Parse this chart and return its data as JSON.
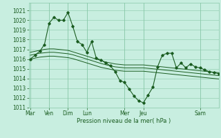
{
  "title": "Pression niveau de la mer( hPa )",
  "day_tick_labels": [
    "Mar",
    "Ven",
    "Dim",
    "Lun",
    "Mer",
    "Jeu",
    "Sam"
  ],
  "day_tick_positions": [
    0,
    24,
    48,
    72,
    120,
    144,
    216
  ],
  "xlim": [
    -2,
    240
  ],
  "ylim": [
    1011.0,
    1021.8
  ],
  "yticks": [
    1011,
    1012,
    1013,
    1014,
    1015,
    1016,
    1017,
    1018,
    1019,
    1020,
    1021
  ],
  "bg_color": "#c8eee0",
  "grid_color": "#88c8a8",
  "line_color": "#1a5c20",
  "jagged_x": [
    0,
    6,
    12,
    18,
    24,
    30,
    36,
    42,
    48,
    54,
    60,
    66,
    72,
    78,
    84,
    90,
    96,
    102,
    108,
    114,
    120,
    126,
    132,
    138,
    144,
    150,
    156,
    162,
    168,
    174,
    180,
    186,
    192,
    198,
    204,
    210,
    216,
    222,
    228,
    234,
    240
  ],
  "jagged_y": [
    1016.0,
    1016.4,
    1016.8,
    1017.5,
    1019.7,
    1020.3,
    1020.0,
    1020.0,
    1020.8,
    1019.4,
    1017.8,
    1017.5,
    1016.7,
    1017.8,
    1016.1,
    1015.9,
    1015.6,
    1015.3,
    1014.7,
    1013.8,
    1013.6,
    1012.9,
    1012.2,
    1011.7,
    1011.5,
    1012.3,
    1013.1,
    1015.2,
    1016.4,
    1016.6,
    1016.6,
    1015.1,
    1015.6,
    1015.1,
    1015.5,
    1015.2,
    1015.1,
    1014.9,
    1014.7,
    1014.6,
    1014.5
  ],
  "smooth1_y": [
    1016.7,
    1016.8,
    1016.9,
    1017.0,
    1017.05,
    1017.05,
    1017.0,
    1016.95,
    1016.9,
    1016.75,
    1016.6,
    1016.45,
    1016.3,
    1016.15,
    1016.0,
    1015.85,
    1015.7,
    1015.6,
    1015.5,
    1015.45,
    1015.4,
    1015.4,
    1015.4,
    1015.4,
    1015.4,
    1015.35,
    1015.3,
    1015.25,
    1015.2,
    1015.15,
    1015.1,
    1015.05,
    1015.0,
    1014.95,
    1014.9,
    1014.85,
    1014.8,
    1014.75,
    1014.7,
    1014.65,
    1014.6
  ],
  "smooth2_y": [
    1016.4,
    1016.5,
    1016.6,
    1016.65,
    1016.7,
    1016.7,
    1016.65,
    1016.6,
    1016.55,
    1016.45,
    1016.3,
    1016.15,
    1016.0,
    1015.85,
    1015.7,
    1015.55,
    1015.42,
    1015.3,
    1015.2,
    1015.15,
    1015.1,
    1015.1,
    1015.1,
    1015.1,
    1015.1,
    1015.05,
    1015.0,
    1014.95,
    1014.9,
    1014.85,
    1014.8,
    1014.75,
    1014.7,
    1014.65,
    1014.6,
    1014.55,
    1014.5,
    1014.45,
    1014.4,
    1014.35,
    1014.3
  ],
  "smooth3_y": [
    1016.0,
    1016.1,
    1016.2,
    1016.25,
    1016.3,
    1016.3,
    1016.25,
    1016.2,
    1016.15,
    1016.05,
    1015.9,
    1015.75,
    1015.6,
    1015.45,
    1015.3,
    1015.15,
    1015.05,
    1014.95,
    1014.85,
    1014.8,
    1014.75,
    1014.75,
    1014.75,
    1014.75,
    1014.75,
    1014.7,
    1014.65,
    1014.6,
    1014.55,
    1014.5,
    1014.45,
    1014.4,
    1014.35,
    1014.3,
    1014.25,
    1014.2,
    1014.15,
    1014.1,
    1014.05,
    1014.0,
    1013.95
  ]
}
